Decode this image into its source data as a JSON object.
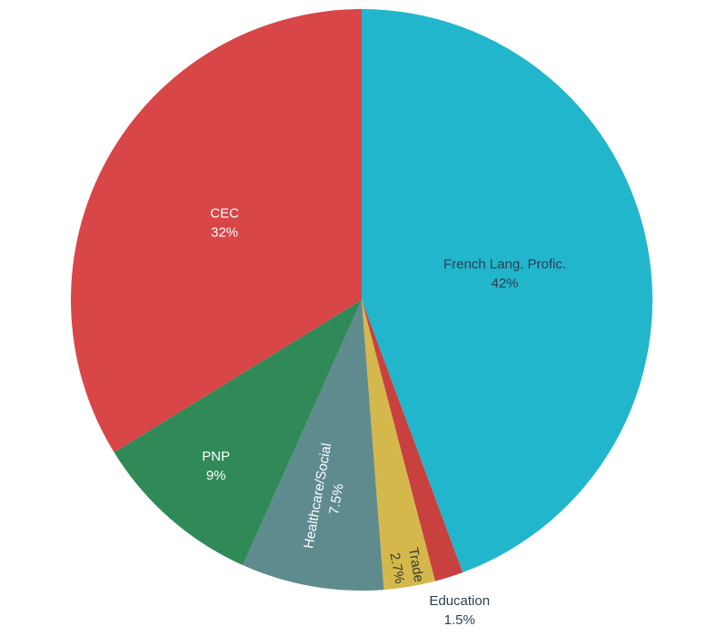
{
  "chart_data": {
    "type": "pie",
    "categories": [
      "French Lang. Profic.",
      "Education",
      "Trade",
      "Healthcare/Social",
      "PNP",
      "CEC"
    ],
    "values": [
      42,
      1.5,
      2.7,
      7.5,
      9,
      32
    ],
    "value_labels": [
      "42%",
      "1.5%",
      "2.7%",
      "7.5%",
      "9%",
      "32%"
    ],
    "colors": [
      "#22b6cd",
      "#c8413f",
      "#d5b84b",
      "#5f8b8f",
      "#2f8a57",
      "#d84647"
    ]
  }
}
